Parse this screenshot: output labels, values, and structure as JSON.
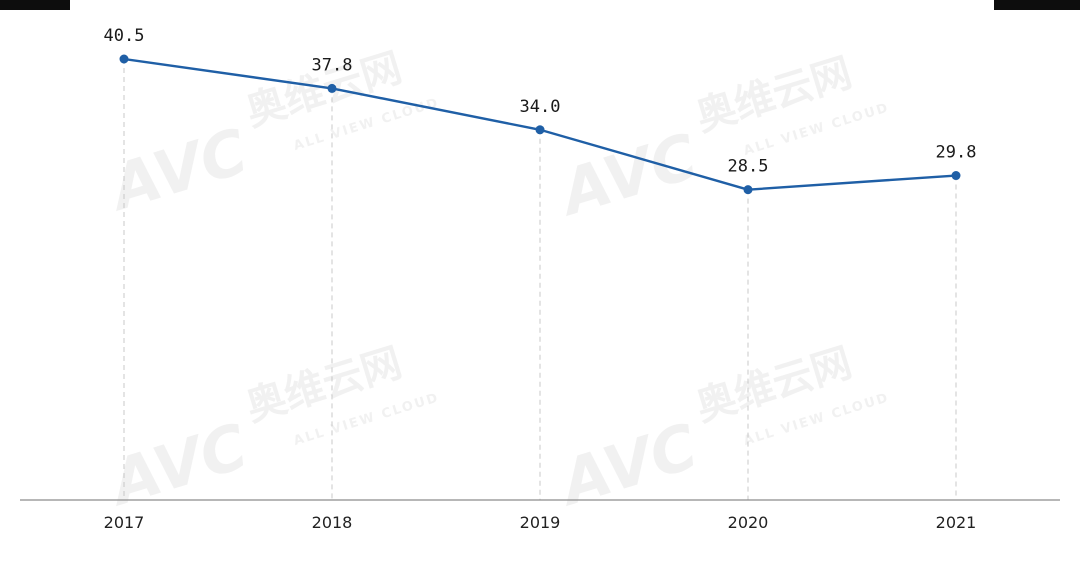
{
  "chart_data": {
    "type": "line",
    "x": [
      "2017",
      "2018",
      "2019",
      "2020",
      "2021"
    ],
    "series": [
      {
        "values": [
          40.5,
          37.8,
          34.0,
          28.5,
          29.8
        ],
        "labels": [
          "40.5",
          "37.8",
          "34.0",
          "28.5",
          "29.8"
        ],
        "color": "#1f5fa6"
      }
    ],
    "title": "",
    "xlabel": "",
    "ylabel": "",
    "ylim": [
      0,
      45
    ],
    "grid": "vertical-dashed",
    "legend": "none"
  },
  "colors": {
    "line": "#1f5fa6",
    "axis": "#8c8c8c",
    "gridline": "#c8c8c8",
    "watermark": "#e6e6e6"
  },
  "watermark": {
    "logo": "AVC",
    "cn": "奥维云网",
    "en": "ALL VIEW CLOUD"
  }
}
